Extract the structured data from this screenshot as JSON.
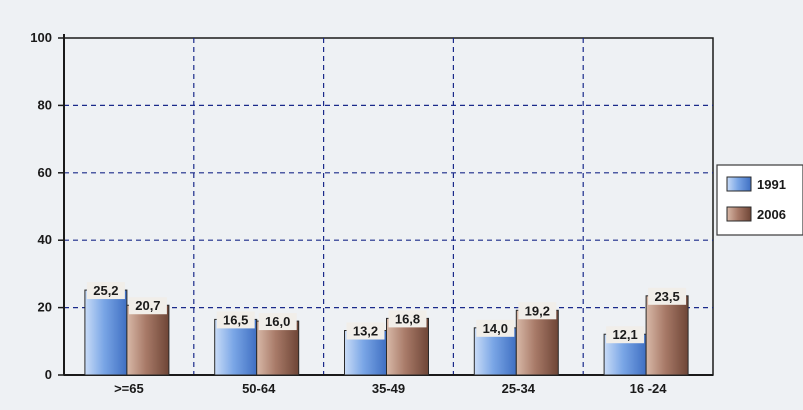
{
  "chart_data": {
    "type": "bar",
    "orientation": "vertical",
    "categories": [
      ">=65",
      "50-64",
      "35-49",
      "25-34",
      "16 -24"
    ],
    "series": [
      {
        "name": "1991",
        "values": [
          25.2,
          16.5,
          13.2,
          14.0,
          12.1
        ],
        "labels": [
          "25,2",
          "16,5",
          "13,2",
          "14,0",
          "12,1"
        ],
        "color": "#6f9fe0"
      },
      {
        "name": "2006",
        "values": [
          20.7,
          16.0,
          16.8,
          19.2,
          23.5
        ],
        "labels": [
          "20,7",
          "16,0",
          "16,8",
          "19,2",
          "23,5"
        ],
        "color": "#a87a68"
      }
    ],
    "ylim": [
      0,
      100
    ],
    "yticks": [
      0,
      20,
      40,
      60,
      80,
      100
    ],
    "grid": true,
    "legend_position": "right",
    "title": "",
    "xlabel": "",
    "ylabel": ""
  }
}
